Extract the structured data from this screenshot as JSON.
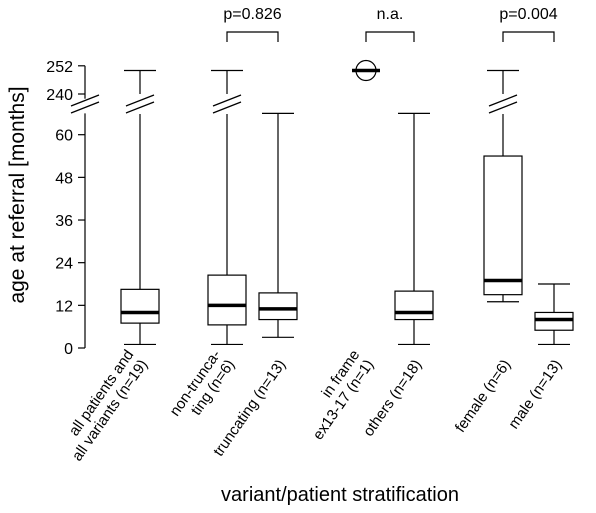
{
  "chart_data": {
    "type": "box",
    "xlabel": "variant/patient stratification",
    "ylabel": "age at referral [months]",
    "y_axis": {
      "lower_range": [
        0,
        66
      ],
      "upper_range": [
        238,
        252
      ],
      "lower_ticks": [
        "0",
        "12",
        "24",
        "36",
        "48",
        "60"
      ],
      "upper_ticks": [
        "240",
        "252"
      ],
      "axis_break": true
    },
    "groups": [
      {
        "label": [
          "all patients and",
          "all variants  (n=19)"
        ],
        "min": 1,
        "q1": 7,
        "median": 10,
        "q3": 16.5,
        "max": 250
      },
      {
        "label": [
          "non-trunca-",
          "ting (n=6)"
        ],
        "min": 1,
        "q1": 6.5,
        "median": 12,
        "q3": 20.5,
        "max": 250
      },
      {
        "label": [
          "truncating  (n=13)"
        ],
        "min": 3,
        "q1": 8,
        "median": 11,
        "q3": 15.5,
        "max": 66
      },
      {
        "label": [
          "in frame",
          "ex13-17  (n=1)"
        ],
        "single_value": 250
      },
      {
        "label": [
          "others  (n=18)"
        ],
        "min": 1,
        "q1": 8,
        "median": 10,
        "q3": 16,
        "max": 66
      },
      {
        "label": [
          "female  (n=6)"
        ],
        "min": 13,
        "q1": 15,
        "median": 19,
        "q3": 54,
        "max": 250
      },
      {
        "label": [
          "male  (n=13)"
        ],
        "min": 1,
        "q1": 5,
        "median": 8,
        "q3": 10,
        "max": 18
      }
    ],
    "comparisons": [
      {
        "groups": [
          1,
          2
        ],
        "label": "p=0.826"
      },
      {
        "groups": [
          3,
          4
        ],
        "label": "n.a."
      },
      {
        "groups": [
          5,
          6
        ],
        "label": "p=0.004"
      }
    ]
  }
}
